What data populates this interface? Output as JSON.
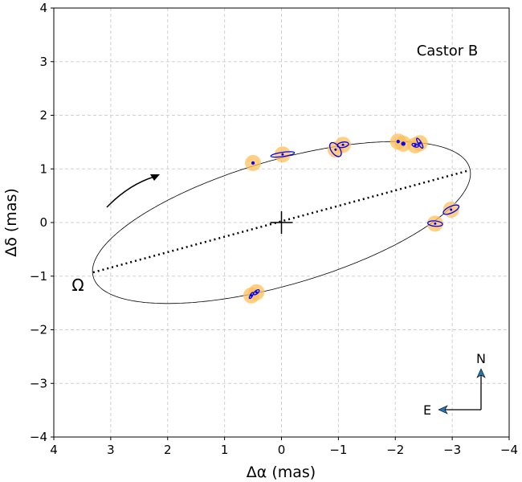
{
  "chart_data": {
    "type": "scatter",
    "title": "",
    "xlabel": "Δα (mas)",
    "ylabel": "Δδ (mas)",
    "xlim": [
      4,
      -4
    ],
    "ylim": [
      -4,
      4
    ],
    "x_ticks": [
      4,
      3,
      2,
      1,
      0,
      -1,
      -2,
      -3,
      -4
    ],
    "y_ticks": [
      -4,
      -3,
      -2,
      -1,
      0,
      1,
      2,
      3,
      4
    ],
    "x_tick_labels": [
      "4",
      "3",
      "2",
      "1",
      "0",
      "−1",
      "−2",
      "−3",
      "−4"
    ],
    "y_tick_labels": [
      "−4",
      "−3",
      "−2",
      "−1",
      "0",
      "1",
      "2",
      "3",
      "4"
    ],
    "grid": true,
    "annotation": "Castor B",
    "node_label": "Ω",
    "compass": {
      "north": "N",
      "east": "E"
    },
    "orbit_ellipse": {
      "x_cos": -2.0,
      "x_sin": 2.65,
      "y_cos": 1.51,
      "y_sin": 0.0
    },
    "line_of_nodes": [
      [
        3.31,
        -0.93
      ],
      [
        -3.29,
        0.97
      ]
    ],
    "primary": [
      0,
      0
    ],
    "points": [
      {
        "x": 0.5,
        "y": 1.11,
        "err_a": 0.02,
        "err_b": 0.01,
        "err_angle": 0
      },
      {
        "x": -0.02,
        "y": 1.27,
        "err_a": 0.21,
        "err_b": 0.04,
        "err_angle": -8
      },
      {
        "x": -0.95,
        "y": 1.36,
        "err_a": 0.14,
        "err_b": 0.08,
        "err_angle": 55
      },
      {
        "x": -1.08,
        "y": 1.45,
        "err_a": 0.1,
        "err_b": 0.05,
        "err_angle": -10
      },
      {
        "x": -2.05,
        "y": 1.51,
        "err_a": 0.02,
        "err_b": 0.02,
        "err_angle": 0
      },
      {
        "x": -2.14,
        "y": 1.47,
        "err_a": 0.03,
        "err_b": 0.03,
        "err_angle": 0
      },
      {
        "x": -2.35,
        "y": 1.44,
        "err_a": 0.06,
        "err_b": 0.03,
        "err_angle": 20
      },
      {
        "x": -2.43,
        "y": 1.48,
        "err_a": 0.1,
        "err_b": 0.03,
        "err_angle": 60
      },
      {
        "x": -2.98,
        "y": 0.24,
        "err_a": 0.15,
        "err_b": 0.06,
        "err_angle": -25
      },
      {
        "x": -2.7,
        "y": -0.02,
        "err_a": 0.13,
        "err_b": 0.05,
        "err_angle": 5
      },
      {
        "x": 0.53,
        "y": -1.36,
        "err_a": 0.06,
        "err_b": 0.02,
        "err_angle": -60
      },
      {
        "x": 0.44,
        "y": -1.3,
        "err_a": 0.06,
        "err_b": 0.03,
        "err_angle": -40
      }
    ],
    "colors": {
      "marker": "#ffbf5a",
      "error": "#0000ff",
      "orbit": "#000000",
      "compass_head": "#1f77b4"
    },
    "motion_arrow": "counterclockwise"
  }
}
